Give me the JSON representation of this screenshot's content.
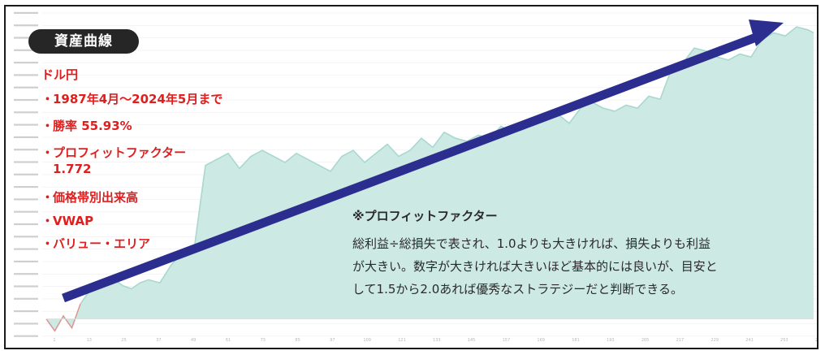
{
  "title": "資産曲線",
  "notes": {
    "pair": "ドル円",
    "bullet_mark": "・",
    "period": "1987年4月〜2024年5月まで",
    "winrate": "勝率 55.93%",
    "pf_label": "プロフィットファクター",
    "pf_value": "1.772",
    "indicator_1": "価格帯別出来高",
    "indicator_2": "VWAP",
    "indicator_3": "バリュー・エリア"
  },
  "explanation": {
    "title": "※プロフィットファクター",
    "line_1": "総利益÷総損失で表され、1.0よりも大きければ、損失よりも利益",
    "line_2": "が大きい。数字が大きければ大きいほど基本的には良いが、目安と",
    "line_3": "して1.5から2.0あれば優秀なストラテジーだと判断できる。"
  },
  "colors": {
    "area_fill": "#cde9e4",
    "line": "#a8d8cf",
    "loss_line": "#e88f8f",
    "arrow": "#2b2d8f",
    "notes": "#e01e1e",
    "badge_bg": "#262626",
    "grid": "#eeeeee"
  },
  "chart_data": {
    "type": "area",
    "title": "資産曲線",
    "xlabel": "",
    "ylabel": "",
    "grid": true,
    "x_ticks": [
      "1",
      "13",
      "25",
      "37",
      "49",
      "61",
      "73",
      "85",
      "97",
      "109",
      "121",
      "133",
      "145",
      "157",
      "169",
      "181",
      "193",
      "205",
      "217",
      "229",
      "241",
      "253",
      "265"
    ],
    "ylim": [
      -0.02,
      1.0
    ],
    "series": [
      {
        "x": [
          0,
          3,
          6,
          9,
          12,
          15,
          18,
          21,
          24,
          27,
          30,
          33,
          36,
          40,
          44,
          48,
          52,
          56,
          60,
          64,
          68,
          72,
          76,
          80,
          84,
          88,
          92,
          96,
          100,
          104,
          108,
          112,
          116,
          120,
          124,
          128,
          132,
          136,
          140,
          144,
          148,
          152,
          156,
          160,
          164,
          168,
          172,
          176,
          180,
          184,
          188,
          192,
          196,
          200,
          204,
          208,
          212,
          216,
          220,
          224,
          228,
          232,
          236,
          240,
          244,
          248,
          252,
          256,
          260,
          264,
          268,
          270
        ],
        "y": [
          0.0,
          -0.04,
          0.01,
          -0.03,
          0.05,
          0.09,
          0.1,
          0.12,
          0.13,
          0.11,
          0.1,
          0.12,
          0.13,
          0.12,
          0.18,
          0.22,
          0.23,
          0.51,
          0.53,
          0.55,
          0.5,
          0.54,
          0.56,
          0.54,
          0.52,
          0.55,
          0.53,
          0.51,
          0.49,
          0.54,
          0.56,
          0.52,
          0.55,
          0.58,
          0.54,
          0.56,
          0.6,
          0.57,
          0.62,
          0.6,
          0.59,
          0.61,
          0.6,
          0.64,
          0.62,
          0.63,
          0.65,
          0.66,
          0.68,
          0.65,
          0.7,
          0.72,
          0.7,
          0.69,
          0.71,
          0.7,
          0.74,
          0.73,
          0.83,
          0.85,
          0.9,
          0.89,
          0.87,
          0.86,
          0.88,
          0.87,
          0.93,
          0.95,
          0.94,
          0.97,
          0.96,
          0.95
        ]
      }
    ]
  }
}
